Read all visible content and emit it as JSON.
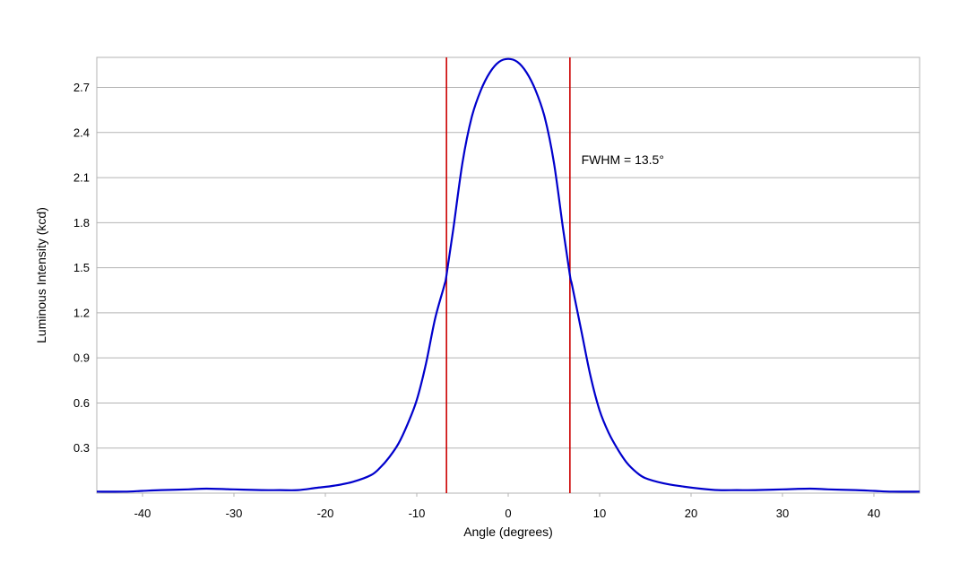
{
  "chart_data": {
    "type": "line",
    "title": "",
    "xlabel": "Angle (degrees)",
    "ylabel": "Luminous Intensity (kcd)",
    "xlim": [
      -45,
      45
    ],
    "ylim": [
      0,
      2.9
    ],
    "x_ticks": [
      -40,
      -30,
      -20,
      -10,
      0,
      10,
      20,
      30,
      40
    ],
    "y_ticks": [
      0.3,
      0.6,
      0.9,
      1.2,
      1.5,
      1.8,
      2.1,
      2.4,
      2.7
    ],
    "x_tick_labels": [
      "-40",
      "-30",
      "-20",
      "-10",
      "0",
      "10",
      "20",
      "30",
      "40"
    ],
    "y_tick_labels": [
      "0.3",
      "0.6",
      "0.9",
      "1.2",
      "1.5",
      "1.8",
      "2.1",
      "2.4",
      "2.7"
    ],
    "grid": {
      "horizontal": true,
      "vertical": false
    },
    "series": [
      {
        "color": "#0000cc",
        "x": [
          -45,
          -42,
          -40,
          -38,
          -35,
          -33,
          -30,
          -27,
          -25,
          -23,
          -21,
          -19,
          -17,
          -15,
          -14,
          -13,
          -12,
          -11,
          -10,
          -9,
          -8,
          -7,
          -6.75,
          -6,
          -5,
          -4,
          -3,
          -2,
          -1,
          0,
          1,
          2,
          3,
          4,
          5,
          6,
          6.75,
          7,
          8,
          9,
          10,
          11,
          12,
          13,
          14,
          15,
          17,
          19,
          21,
          23,
          25,
          27,
          30,
          33,
          35,
          38,
          40,
          42,
          45
        ],
        "y": [
          0.01,
          0.01,
          0.015,
          0.02,
          0.025,
          0.03,
          0.025,
          0.02,
          0.02,
          0.02,
          0.035,
          0.05,
          0.075,
          0.12,
          0.17,
          0.24,
          0.33,
          0.46,
          0.62,
          0.86,
          1.16,
          1.38,
          1.45,
          1.76,
          2.2,
          2.5,
          2.68,
          2.8,
          2.87,
          2.89,
          2.87,
          2.8,
          2.68,
          2.5,
          2.2,
          1.76,
          1.45,
          1.38,
          1.08,
          0.78,
          0.55,
          0.4,
          0.29,
          0.2,
          0.14,
          0.1,
          0.065,
          0.045,
          0.03,
          0.02,
          0.02,
          0.02,
          0.025,
          0.03,
          0.025,
          0.02,
          0.015,
          0.01,
          0.01
        ]
      }
    ],
    "vlines": [
      {
        "x": -6.75,
        "color": "#cc0000"
      },
      {
        "x": 6.75,
        "color": "#cc0000"
      }
    ],
    "annotations": [
      {
        "text": "FWHM = 13.5°",
        "x": 8,
        "y": 2.22
      }
    ]
  }
}
